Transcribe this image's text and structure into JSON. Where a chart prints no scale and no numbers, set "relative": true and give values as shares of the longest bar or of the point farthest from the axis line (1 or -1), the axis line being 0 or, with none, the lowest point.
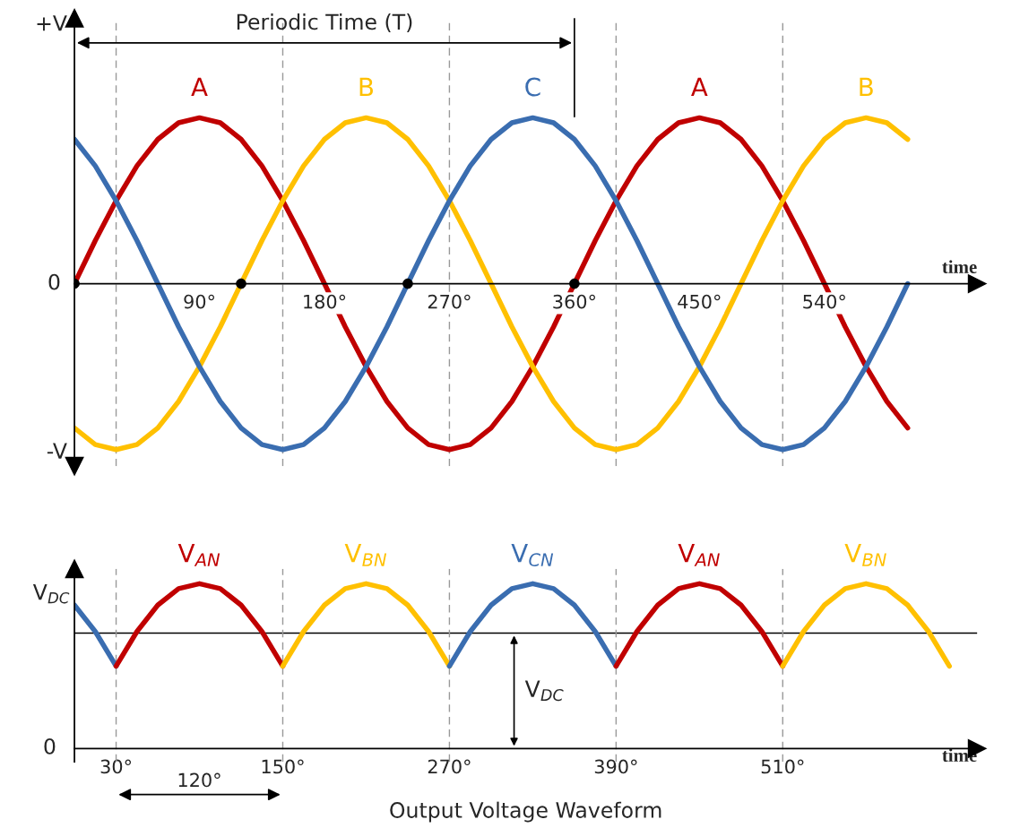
{
  "chart_data": [
    {
      "type": "line",
      "relative": true,
      "xlabel": "time",
      "xlim": [
        0,
        650
      ],
      "xticks": [
        {
          "value": 90,
          "label": "90°"
        },
        {
          "value": 180,
          "label": "180°"
        },
        {
          "value": 270,
          "label": "270°"
        },
        {
          "value": 360,
          "label": "360°"
        },
        {
          "value": 450,
          "label": "450°"
        },
        {
          "value": 540,
          "label": "540°"
        }
      ],
      "x": [
        0,
        15,
        30,
        45,
        60,
        75,
        90,
        105,
        120,
        135,
        150,
        165,
        180,
        195,
        210,
        225,
        240,
        255,
        270,
        285,
        300,
        315,
        330,
        345,
        360,
        375,
        390,
        405,
        420,
        435,
        450,
        465,
        480,
        495,
        510,
        525,
        540,
        555,
        570,
        585,
        600
      ],
      "series": [
        {
          "name": "A",
          "color": "#c00000",
          "values": [
            0,
            0.26,
            0.5,
            0.71,
            0.87,
            0.97,
            1,
            0.97,
            0.87,
            0.71,
            0.5,
            0.26,
            0,
            -0.26,
            -0.5,
            -0.71,
            -0.87,
            -0.97,
            -1,
            -0.97,
            -0.87,
            -0.71,
            -0.5,
            -0.26,
            0,
            0.26,
            0.5,
            0.71,
            0.87,
            0.97,
            1,
            0.97,
            0.87,
            0.71,
            0.5,
            0.26,
            0,
            -0.26,
            -0.5,
            -0.71,
            -0.87
          ]
        },
        {
          "name": "B",
          "color": "#ffc000",
          "values": [
            -0.87,
            -0.97,
            -1,
            -0.97,
            -0.87,
            -0.71,
            -0.5,
            -0.26,
            0,
            0.26,
            0.5,
            0.71,
            0.87,
            0.97,
            1,
            0.97,
            0.87,
            0.71,
            0.5,
            0.26,
            0,
            -0.26,
            -0.5,
            -0.71,
            -0.87,
            -0.97,
            -1,
            -0.97,
            -0.87,
            -0.71,
            -0.5,
            -0.26,
            0,
            0.26,
            0.5,
            0.71,
            0.87,
            0.97,
            1,
            0.97,
            0.87
          ]
        },
        {
          "name": "C",
          "color": "#3a6db0",
          "values": [
            0.87,
            0.71,
            0.5,
            0.26,
            0,
            -0.26,
            -0.5,
            -0.71,
            -0.87,
            -0.97,
            -1,
            -0.97,
            -0.87,
            -0.71,
            -0.5,
            -0.26,
            0,
            0.26,
            0.5,
            0.71,
            0.87,
            0.97,
            1,
            0.97,
            0.87,
            0.71,
            0.5,
            0.26,
            0,
            -0.26,
            -0.5,
            -0.71,
            -0.87,
            -0.97,
            -1,
            -0.97,
            -0.87,
            -0.71,
            -0.5,
            -0.26,
            0
          ]
        },
        {
          "type": "scatter",
          "color": "#000000",
          "marker": "circle",
          "x": [
            0,
            120,
            240,
            360
          ],
          "values": [
            0,
            0,
            0,
            0
          ]
        }
      ],
      "ref_lines": [
        {
          "axis": "x",
          "value": 30,
          "color": "#999999",
          "line_style": "dashed"
        },
        {
          "axis": "x",
          "value": 150,
          "color": "#999999",
          "line_style": "dashed"
        },
        {
          "axis": "x",
          "value": 270,
          "color": "#999999",
          "line_style": "dashed"
        },
        {
          "axis": "x",
          "value": 390,
          "color": "#999999",
          "line_style": "dashed"
        },
        {
          "axis": "x",
          "value": 510,
          "color": "#999999",
          "line_style": "dashed"
        }
      ],
      "annotations": [
        "+V",
        "0",
        "-V",
        "Periodic Time (T)"
      ]
    },
    {
      "type": "line",
      "relative": true,
      "xlabel": "time",
      "xlim": [
        0,
        650
      ],
      "xticks": [
        {
          "value": 30,
          "label": "30°"
        },
        {
          "value": 150,
          "label": "150°"
        },
        {
          "value": 270,
          "label": "270°"
        },
        {
          "value": 390,
          "label": "390°"
        },
        {
          "value": 510,
          "label": "510°"
        }
      ],
      "series": [
        {
          "color": "#3a6db0",
          "x": [
            0,
            15,
            30
          ],
          "values": [
            0.87,
            0.71,
            0.5
          ]
        },
        {
          "name": "V$_{AN}$",
          "color": "#c00000",
          "x": [
            30,
            45,
            60,
            75,
            90,
            105,
            120,
            135,
            150
          ],
          "values": [
            0.5,
            0.71,
            0.87,
            0.97,
            1,
            0.97,
            0.87,
            0.71,
            0.5
          ]
        },
        {
          "name": "V$_{BN}$",
          "color": "#ffc000",
          "x": [
            150,
            165,
            180,
            195,
            210,
            225,
            240,
            255,
            270
          ],
          "values": [
            0.5,
            0.71,
            0.87,
            0.97,
            1,
            0.97,
            0.87,
            0.71,
            0.5
          ]
        },
        {
          "name": "V$_{CN}$",
          "color": "#3a6db0",
          "x": [
            270,
            285,
            300,
            315,
            330,
            345,
            360,
            375,
            390
          ],
          "values": [
            0.5,
            0.71,
            0.87,
            0.97,
            1,
            0.97,
            0.87,
            0.71,
            0.5
          ]
        },
        {
          "name": "V$_{AN}$",
          "color": "#c00000",
          "x": [
            390,
            405,
            420,
            435,
            450,
            465,
            480,
            495,
            510
          ],
          "values": [
            0.5,
            0.71,
            0.87,
            0.97,
            1,
            0.97,
            0.87,
            0.71,
            0.5
          ]
        },
        {
          "name": "V$_{BN}$",
          "color": "#ffc000",
          "x": [
            510,
            525,
            540,
            555,
            570,
            585,
            600,
            615,
            630
          ],
          "values": [
            0.5,
            0.71,
            0.87,
            0.97,
            1,
            0.97,
            0.87,
            0.71,
            0.5
          ]
        }
      ],
      "ref_lines": [
        {
          "axis": "y",
          "value": 0.7,
          "label": "V$_{DC}$",
          "color": "#000000"
        },
        {
          "axis": "x",
          "value": 30,
          "color": "#999999",
          "line_style": "dashed"
        },
        {
          "axis": "x",
          "value": 150,
          "color": "#999999",
          "line_style": "dashed"
        },
        {
          "axis": "x",
          "value": 270,
          "color": "#999999",
          "line_style": "dashed"
        },
        {
          "axis": "x",
          "value": 390,
          "color": "#999999",
          "line_style": "dashed"
        },
        {
          "axis": "x",
          "value": 510,
          "color": "#999999",
          "line_style": "dashed"
        }
      ],
      "annotations": [
        "V$_{DC}$",
        "0",
        "Output Voltage Waveform",
        "120°"
      ]
    }
  ]
}
